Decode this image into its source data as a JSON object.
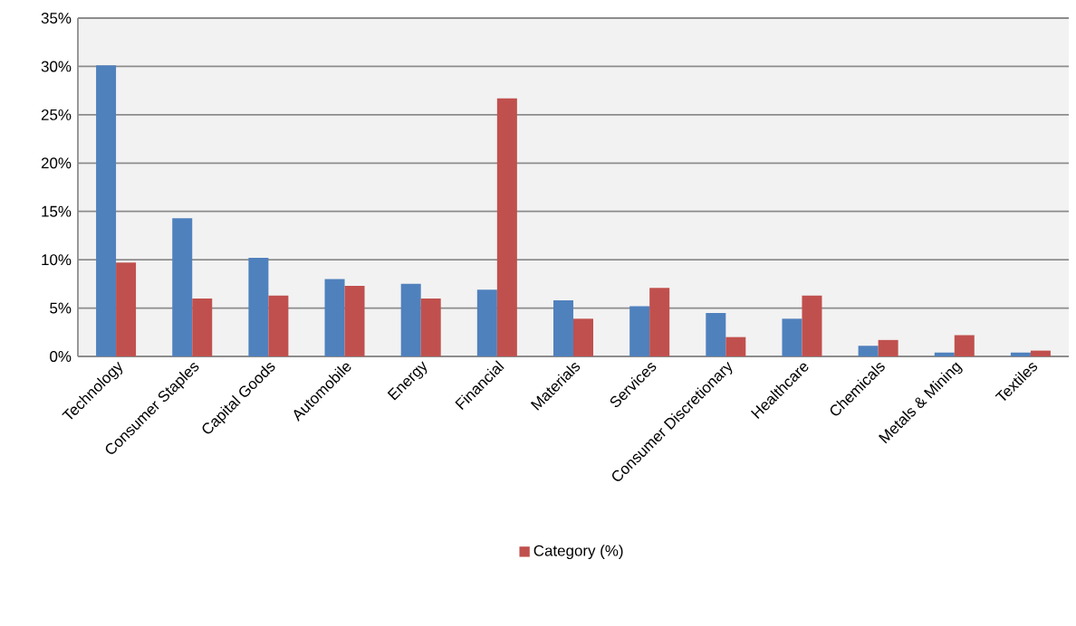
{
  "chart_data": {
    "type": "bar",
    "categories": [
      "Technology",
      "Consumer Staples",
      "Capital Goods",
      "Automobile",
      "Energy",
      "Financial",
      "Materials",
      "Services",
      "Consumer Discretionary",
      "Healthcare",
      "Chemicals",
      "Metals & Mining",
      "Textiles"
    ],
    "series": [
      {
        "color": "#4f81bd",
        "values": [
          30.1,
          14.3,
          10.2,
          8.0,
          7.5,
          6.9,
          5.8,
          5.2,
          4.5,
          3.9,
          1.1,
          0.4,
          0.4
        ]
      },
      {
        "name": "Category (%)",
        "color": "#c0504d",
        "values": [
          9.7,
          6.0,
          6.3,
          7.3,
          6.0,
          26.7,
          3.9,
          7.1,
          2.0,
          6.3,
          1.7,
          2.2,
          0.6
        ]
      }
    ],
    "ylim": [
      0,
      35
    ],
    "yticks": [
      {
        "value": 0,
        "label": "0%"
      },
      {
        "value": 5,
        "label": "5%"
      },
      {
        "value": 10,
        "label": "10%"
      },
      {
        "value": 15,
        "label": "15%"
      },
      {
        "value": 20,
        "label": "20%"
      },
      {
        "value": 25,
        "label": "25%"
      },
      {
        "value": 30,
        "label": "30%"
      },
      {
        "value": 35,
        "label": "35%"
      }
    ],
    "grid": "y",
    "legend": "bottom"
  }
}
